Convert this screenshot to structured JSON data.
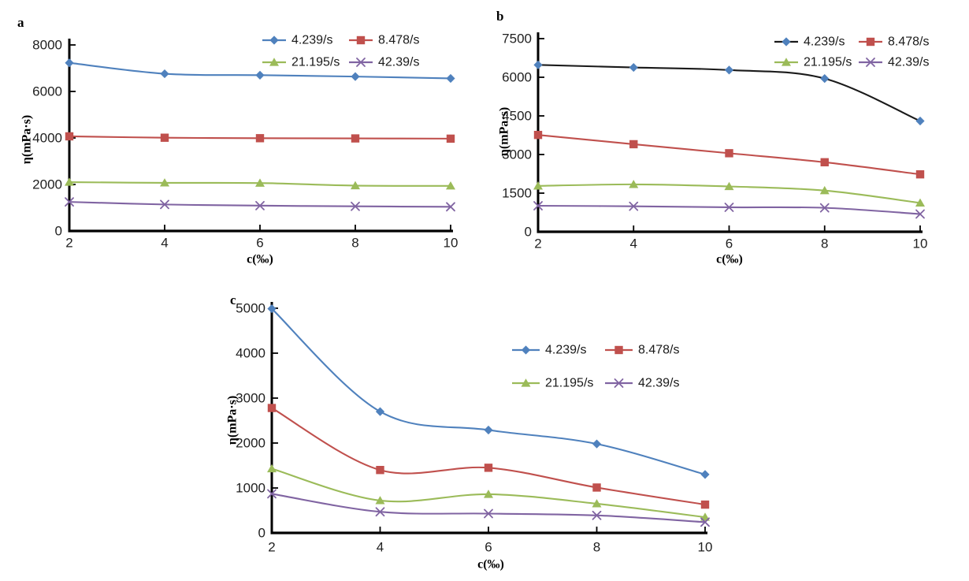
{
  "figure": {
    "background": "#ffffff",
    "text_color": "#1f1f1f",
    "axis_color": "#000000"
  },
  "chart_data": [
    {
      "id": "a",
      "panel_label": "a",
      "type": "line",
      "x": [
        2,
        4,
        6,
        8,
        10
      ],
      "xticks": [
        2,
        4,
        6,
        8,
        10
      ],
      "xlabel": "c(‰)",
      "ylabel": "η(mPa·s)",
      "ylim": [
        0,
        8000
      ],
      "yticks": [
        0,
        2000,
        4000,
        6000,
        8000
      ],
      "grid": false,
      "legend_position": "inside-top-right",
      "series": [
        {
          "name": "4.239/s",
          "marker": "diamond",
          "line_color": "#4f81bd",
          "marker_color": "#4f81bd",
          "values": [
            7230,
            6760,
            6700,
            6640,
            6560
          ]
        },
        {
          "name": "8.478/s",
          "marker": "square",
          "line_color": "#c0504d",
          "marker_color": "#c0504d",
          "values": [
            4070,
            4010,
            3990,
            3980,
            3970
          ]
        },
        {
          "name": "21.195/s",
          "marker": "triangle",
          "line_color": "#9bbb59",
          "marker_color": "#9bbb59",
          "values": [
            2100,
            2070,
            2060,
            1950,
            1940
          ]
        },
        {
          "name": "42.39/s",
          "marker": "x",
          "line_color": "#8064a2",
          "marker_color": "#8064a2",
          "values": [
            1250,
            1140,
            1090,
            1060,
            1040
          ]
        }
      ]
    },
    {
      "id": "b",
      "panel_label": "b",
      "type": "line",
      "x": [
        2,
        4,
        6,
        8,
        10
      ],
      "xticks": [
        2,
        4,
        6,
        8,
        10
      ],
      "xlabel": "c(‰)",
      "ylabel": "η(mPa·s)",
      "ylim": [
        0,
        7500
      ],
      "yticks": [
        0,
        1500,
        3000,
        4500,
        6000,
        7500
      ],
      "grid": false,
      "legend_position": "inside-top-right",
      "series": [
        {
          "name": "4.239/s",
          "marker": "diamond",
          "line_color": "#1a1a1a",
          "marker_color": "#4f81bd",
          "values": [
            6480,
            6380,
            6280,
            5950,
            4300
          ]
        },
        {
          "name": "8.478/s",
          "marker": "square",
          "line_color": "#c0504d",
          "marker_color": "#c0504d",
          "values": [
            3760,
            3400,
            3050,
            2700,
            2230
          ]
        },
        {
          "name": "21.195/s",
          "marker": "triangle",
          "line_color": "#9bbb59",
          "marker_color": "#9bbb59",
          "values": [
            1780,
            1840,
            1760,
            1600,
            1120
          ]
        },
        {
          "name": "42.39/s",
          "marker": "x",
          "line_color": "#8064a2",
          "marker_color": "#8064a2",
          "values": [
            1010,
            990,
            950,
            930,
            690
          ]
        }
      ]
    },
    {
      "id": "c",
      "panel_label": "c",
      "type": "line",
      "x": [
        2,
        4,
        6,
        8,
        10
      ],
      "xticks": [
        2,
        4,
        6,
        8,
        10
      ],
      "xlabel": "c(‰)",
      "ylabel": "η(mPa·s)",
      "ylim": [
        0,
        5000
      ],
      "yticks": [
        0,
        1000,
        2000,
        3000,
        4000,
        5000
      ],
      "grid": false,
      "legend_position": "inside-top-right",
      "series": [
        {
          "name": "4.239/s",
          "marker": "diamond",
          "line_color": "#4f81bd",
          "marker_color": "#4f81bd",
          "values": [
            4990,
            2700,
            2290,
            1980,
            1300
          ]
        },
        {
          "name": "8.478/s",
          "marker": "square",
          "line_color": "#c0504d",
          "marker_color": "#c0504d",
          "values": [
            2780,
            1400,
            1450,
            1010,
            630
          ]
        },
        {
          "name": "21.195/s",
          "marker": "triangle",
          "line_color": "#9bbb59",
          "marker_color": "#9bbb59",
          "values": [
            1430,
            720,
            860,
            650,
            350
          ]
        },
        {
          "name": "42.39/s",
          "marker": "x",
          "line_color": "#8064a2",
          "marker_color": "#8064a2",
          "values": [
            870,
            470,
            430,
            390,
            240
          ]
        }
      ]
    }
  ]
}
